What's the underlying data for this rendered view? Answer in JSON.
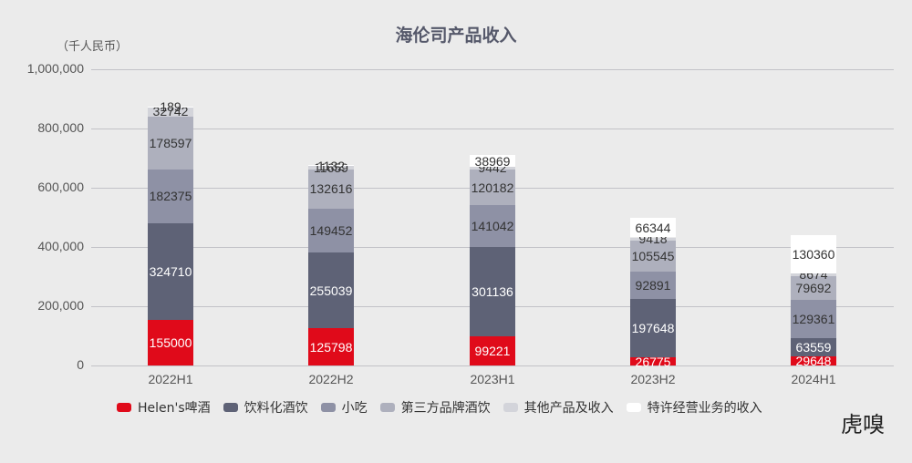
{
  "title": "海伦司产品收入",
  "unit": "（千人民币）",
  "logo": "虎嗅",
  "chart_data": {
    "type": "bar",
    "stacked": true,
    "title": "海伦司产品收入",
    "ylabel": "（千人民币）",
    "xlabel": "",
    "ylim": [
      0,
      1000000
    ],
    "yticks": [
      "0",
      "200,000",
      "400,000",
      "600,000",
      "800,000",
      "1,000,000"
    ],
    "ytick_values": [
      0,
      200000,
      400000,
      600000,
      800000,
      1000000
    ],
    "grid": true,
    "legend_position": "bottom",
    "categories": [
      "2022H1",
      "2022H2",
      "2023H1",
      "2023H2",
      "2024H1"
    ],
    "series": [
      {
        "name": "Helen's啤酒",
        "color": "#e00a1a",
        "label_color": "#ffffff",
        "values": [
          155000,
          125798,
          99221,
          26775,
          29648
        ]
      },
      {
        "name": "饮料化酒饮",
        "color": "#5e6276",
        "label_color": "#ffffff",
        "values": [
          324710,
          255039,
          301136,
          197648,
          63559
        ]
      },
      {
        "name": "小吃",
        "color": "#8e91a5",
        "label_color": "#333333",
        "values": [
          182375,
          149452,
          141042,
          92891,
          129361
        ]
      },
      {
        "name": "第三方品牌酒饮",
        "color": "#aeb0bd",
        "label_color": "#333333",
        "values": [
          178597,
          132616,
          120182,
          105545,
          79692
        ]
      },
      {
        "name": "其他产品及收入",
        "color": "#d3d4da",
        "label_color": "#333333",
        "values": [
          32742,
          11659,
          9442,
          9418,
          8674
        ]
      },
      {
        "name": "特许经营业务的收入",
        "color": "#ffffff",
        "label_color": "#333333",
        "values": [
          189,
          1132,
          38969,
          66344,
          130360
        ]
      }
    ]
  }
}
